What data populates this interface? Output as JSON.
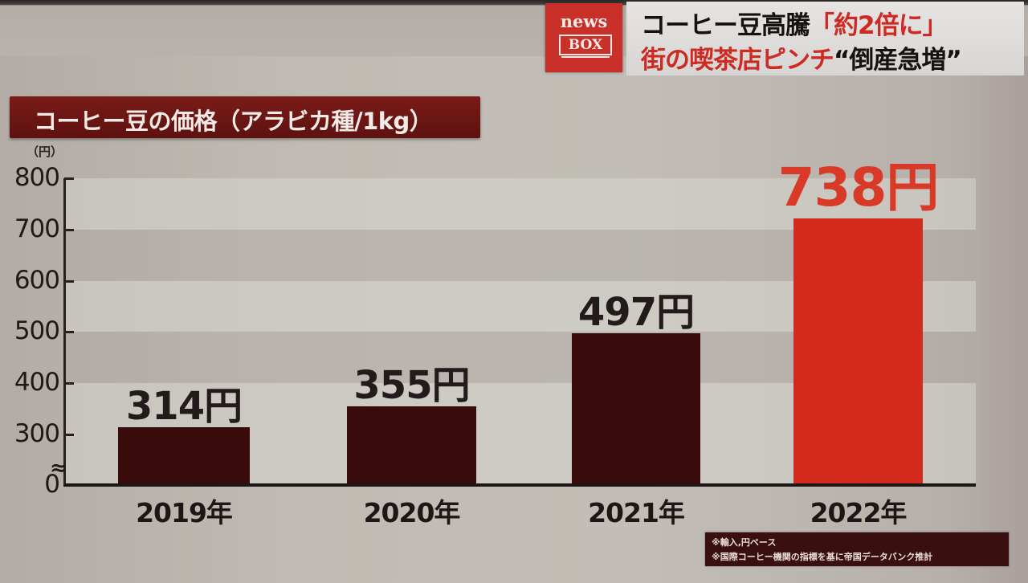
{
  "header": {
    "logo": {
      "top": "news",
      "bottom": "BOX"
    },
    "headline_line1": [
      {
        "text": "コーヒー豆高騰",
        "color": "black"
      },
      {
        "text": "「約2倍に」",
        "color": "red"
      }
    ],
    "headline_line2": [
      {
        "text": "街の喫茶店ピンチ",
        "color": "red"
      },
      {
        "text": "“倒産急増”",
        "color": "black"
      }
    ]
  },
  "chart_title": "コーヒー豆の価格（アラビカ種/1kg）",
  "unit_label": "（円）",
  "colors": {
    "bar_default": "#3a0b0b",
    "bar_highlight": "#d42a1e",
    "label_highlight": "#d93a28",
    "title_bg": "#6b1513",
    "logo_bg": "#c9302a"
  },
  "footnotes": [
    "※輸入,円ベース",
    "※国際コーヒー機関の指標を基に帝国データバンク推計"
  ],
  "chart_data": {
    "type": "bar",
    "title": "コーヒー豆の価格（アラビカ種/1kg）",
    "xlabel": "",
    "ylabel": "（円）",
    "categories": [
      "2019年",
      "2020年",
      "2021年",
      "2022年"
    ],
    "values": [
      314,
      355,
      497,
      738
    ],
    "value_labels": [
      "314円",
      "355円",
      "497円",
      "738円"
    ],
    "highlight_index": 3,
    "yticks": [
      0,
      300,
      400,
      500,
      600,
      700,
      800
    ],
    "ytick_labels": [
      "0",
      "300",
      "400",
      "500",
      "600",
      "700",
      "800"
    ],
    "ylim": [
      0,
      800
    ],
    "axis_break": "between 0 and 300",
    "grid": "alternating horizontal bands",
    "legend": "none"
  }
}
